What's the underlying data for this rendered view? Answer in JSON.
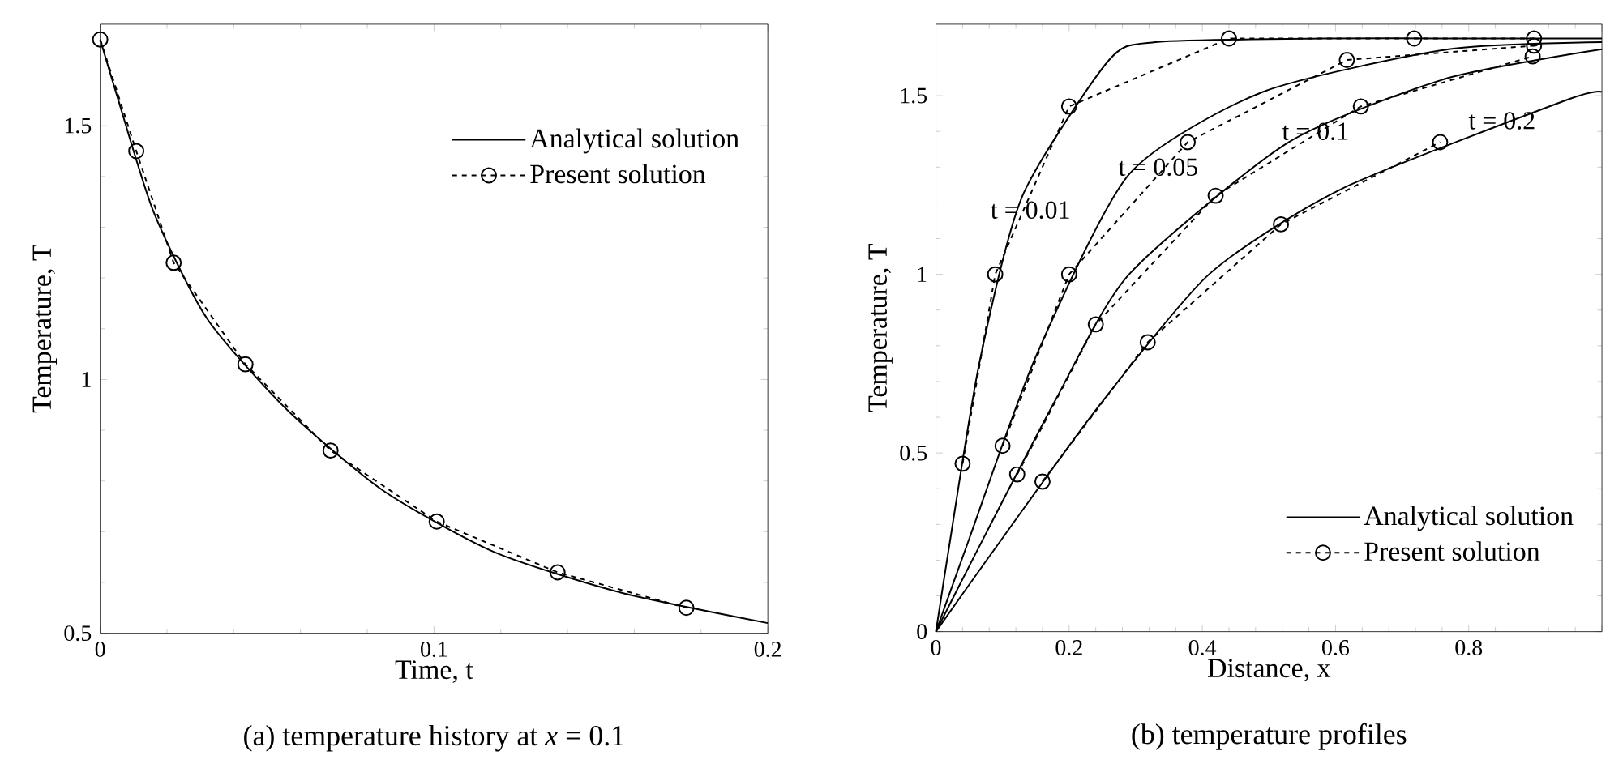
{
  "chart_data": [
    {
      "type": "line",
      "xlabel": "Time, t",
      "ylabel": "Temperature, T",
      "xlim": [
        0,
        0.2
      ],
      "ylim": [
        0.5,
        1.7
      ],
      "xticks": [
        0,
        0.1,
        0.2
      ],
      "yticks": [
        0.5,
        1,
        1.5
      ],
      "legend": "top right",
      "annotations": [
        "(a) temperature history at *x* = 0.1"
      ],
      "series": [
        {
          "name": "Analytical solution",
          "color": "#000000",
          "line_style": "solid",
          "marker": "none",
          "x": [
            0,
            0.005,
            0.016,
            0.032,
            0.056,
            0.085,
            0.118,
            0.156,
            0.2
          ],
          "values": [
            1.67,
            1.56,
            1.33,
            1.12,
            0.94,
            0.78,
            0.66,
            0.58,
            0.52
          ]
        },
        {
          "name": "Present solution",
          "color": "#000000",
          "line_style": "dashed",
          "marker": "circle",
          "x": [
            0,
            0.0108,
            0.022,
            0.0435,
            0.069,
            0.1008,
            0.137,
            0.1756
          ],
          "values": [
            1.67,
            1.45,
            1.23,
            1.03,
            0.86,
            0.72,
            0.62,
            0.55
          ]
        }
      ]
    },
    {
      "type": "line",
      "xlabel": "Distance, x",
      "ylabel": "Temperature, T",
      "xlim": [
        0,
        1
      ],
      "ylim": [
        0,
        1.7
      ],
      "xticks": [
        0,
        0.2,
        0.4,
        0.6,
        0.8,
        {
          "value": 1,
          "label": null
        }
      ],
      "yticks": [
        0,
        0.5,
        1,
        1.5
      ],
      "legend": "bottom right",
      "annotations": [
        "(b) temperature profiles",
        {
          "text": "t = 0.01",
          "x": 0.142,
          "y": 1.18
        },
        {
          "text": "t = 0.05",
          "x": 0.334,
          "y": 1.3
        },
        {
          "text": "t = 0.1",
          "x": 0.57,
          "y": 1.4
        },
        {
          "text": "t = 0.2",
          "x": 0.85,
          "y": 1.43
        }
      ],
      "series": [
        {
          "name": "Analytical solution",
          "color": "#000000",
          "line_style": "solid",
          "marker": "none",
          "x": [
            0,
            0.02,
            0.065,
            0.13,
            0.26,
            0.33,
            0.58,
            0.8,
            1.0
          ],
          "values": [
            0,
            0.24,
            0.75,
            1.22,
            1.6,
            1.65,
            1.66,
            1.66,
            1.66
          ]
        },
        {
          "color": "#000000",
          "line_style": "solid",
          "marker": "none",
          "x": [
            0,
            0.05,
            0.15,
            0.29,
            0.49,
            0.77,
            1.0
          ],
          "values": [
            0,
            0.26,
            0.77,
            1.28,
            1.51,
            1.63,
            1.65
          ]
        },
        {
          "color": "#000000",
          "line_style": "solid",
          "marker": "none",
          "x": [
            0,
            0.06,
            0.18,
            0.29,
            0.53,
            0.77,
            1.0
          ],
          "values": [
            0,
            0.22,
            0.65,
            1.0,
            1.37,
            1.55,
            1.63
          ]
        },
        {
          "color": "#000000",
          "line_style": "solid",
          "marker": "none",
          "x": [
            0,
            0.08,
            0.24,
            0.41,
            0.61,
            0.95,
            1.0
          ],
          "values": [
            0,
            0.21,
            0.62,
            1.0,
            1.24,
            1.49,
            1.51
          ]
        },
        {
          "name": "Present solution",
          "color": "#000000",
          "line_style": "dashed",
          "marker": "circle",
          "x": [
            0.04,
            0.089,
            0.2,
            0.44,
            0.718,
            0.898
          ],
          "values": [
            0.47,
            1.0,
            1.47,
            1.66,
            1.66,
            1.66
          ]
        },
        {
          "color": "#000000",
          "line_style": "dashed",
          "marker": "circle",
          "x": [
            0.1,
            0.2,
            0.378,
            0.617,
            0.898
          ],
          "values": [
            0.52,
            1.0,
            1.37,
            1.6,
            1.64
          ]
        },
        {
          "color": "#000000",
          "line_style": "dashed",
          "marker": "circle",
          "x": [
            0.122,
            0.24,
            0.42,
            0.638,
            0.896
          ],
          "values": [
            0.44,
            0.86,
            1.22,
            1.47,
            1.61
          ]
        },
        {
          "color": "#000000",
          "line_style": "dashed",
          "marker": "circle",
          "x": [
            0.16,
            0.318,
            0.518,
            0.757
          ],
          "values": [
            0.42,
            0.81,
            1.14,
            1.37
          ]
        }
      ]
    }
  ]
}
